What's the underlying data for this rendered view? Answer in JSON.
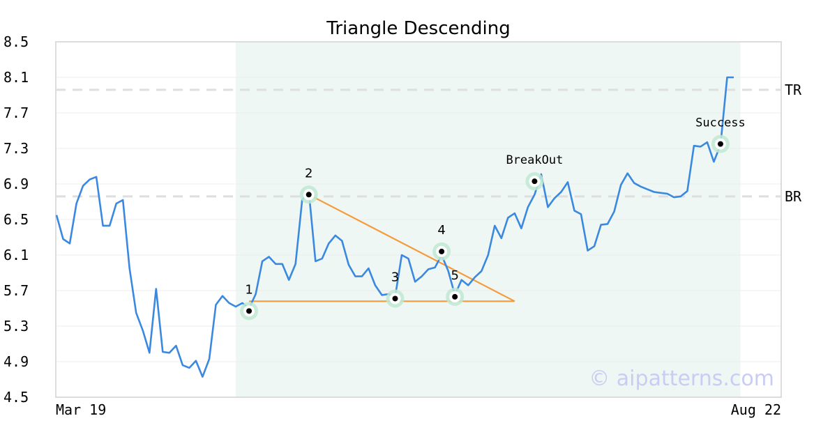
{
  "chart_data": {
    "type": "line",
    "title": "Triangle Descending",
    "y_ticks": [
      "8.5",
      "8.1",
      "7.7",
      "7.3",
      "6.9",
      "6.5",
      "6.1",
      "5.7",
      "5.3",
      "4.9",
      "4.5"
    ],
    "ylim": [
      4.5,
      8.5
    ],
    "x_tick_labels": [
      {
        "label": "Mar 19",
        "index": 0
      },
      {
        "label": "Aug 22",
        "index": 103
      }
    ],
    "grid": "horizontal",
    "highlight_range": [
      27,
      103
    ],
    "series": [
      {
        "color": "#3a88e0",
        "values": [
          6.55,
          6.28,
          6.23,
          6.68,
          6.88,
          6.95,
          6.98,
          6.43,
          6.43,
          6.68,
          6.72,
          5.95,
          5.45,
          5.25,
          5.0,
          5.72,
          5.01,
          5.0,
          5.08,
          4.86,
          4.83,
          4.91,
          4.73,
          4.93,
          5.54,
          5.64,
          5.56,
          5.52,
          5.56,
          5.5,
          5.66,
          6.03,
          6.08,
          6.0,
          6.0,
          5.82,
          6.0,
          6.72,
          6.82,
          6.03,
          6.06,
          6.23,
          6.32,
          6.26,
          5.99,
          5.86,
          5.86,
          5.95,
          5.76,
          5.65,
          5.66,
          5.63,
          6.1,
          6.06,
          5.8,
          5.86,
          5.94,
          5.96,
          6.1,
          5.92,
          5.65,
          5.82,
          5.76,
          5.85,
          5.92,
          6.1,
          6.43,
          6.29,
          6.52,
          6.57,
          6.4,
          6.64,
          6.78,
          7.01,
          6.64,
          6.74,
          6.81,
          6.92,
          6.6,
          6.56,
          6.15,
          6.2,
          6.44,
          6.45,
          6.59,
          6.89,
          7.02,
          6.91,
          6.87,
          6.84,
          6.81,
          6.8,
          6.79,
          6.75,
          6.76,
          6.82,
          7.33,
          7.32,
          7.37,
          7.15,
          7.34,
          8.1,
          8.1
        ]
      }
    ],
    "reference_lines": [
      {
        "label": "TR",
        "value": 7.96
      },
      {
        "label": "BR",
        "value": 6.76
      }
    ],
    "pattern_lines": {
      "color": "#f59b3b",
      "upper": {
        "from": [
          38,
          6.78
        ],
        "to": [
          69,
          5.58
        ]
      },
      "lower": {
        "from": [
          29,
          5.58
        ],
        "to": [
          69,
          5.58
        ]
      }
    },
    "points": [
      {
        "label": "1",
        "x": 29,
        "y": 5.47
      },
      {
        "label": "2",
        "x": 38,
        "y": 6.78
      },
      {
        "label": "3",
        "x": 51,
        "y": 5.61
      },
      {
        "label": "4",
        "x": 58,
        "y": 6.14
      },
      {
        "label": "5",
        "x": 60,
        "y": 5.63
      }
    ],
    "annotations": [
      {
        "label": "BreakOut",
        "x": 72,
        "y": 6.93
      },
      {
        "label": "Success",
        "x": 100,
        "y": 7.35
      }
    ],
    "watermark": "© aipatterns.com"
  }
}
